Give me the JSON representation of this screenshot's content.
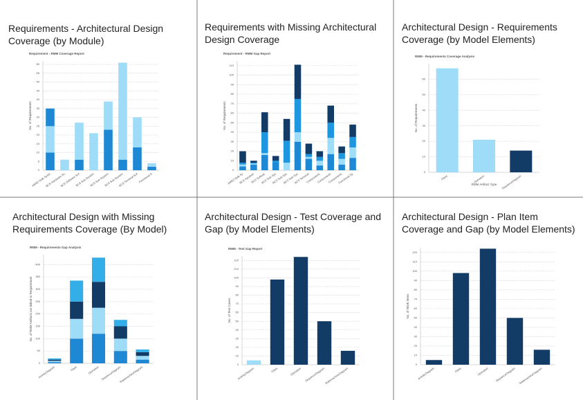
{
  "chart_data": [
    {
      "type": "bar",
      "title": "Requirements - Architectural Design Coverage (by Module)",
      "subtitle": "Requirement - RMM Coverage Report",
      "y_label": "No. of Requirements",
      "categories": [
        "AMSS Bulk Syste",
        "BCS Hardware So",
        "BCS Software Sof",
        "BCS Sub-System",
        "BCS Sub-System",
        "BCS Sub-System",
        "BCS Terminal Sof",
        "Functional S"
      ],
      "series": [
        {
          "color": "#1e88d4",
          "values": [
            10,
            0,
            6,
            0,
            23,
            6,
            13,
            2
          ]
        },
        {
          "color": "#9edcf7",
          "values": [
            15,
            6,
            21,
            21,
            16,
            55,
            17,
            2
          ]
        },
        {
          "color": "#1e88d4",
          "values": [
            10,
            0,
            0,
            0,
            0,
            0,
            0,
            0
          ]
        }
      ],
      "ylim": [
        0,
        62
      ],
      "yticks": [
        0,
        5,
        10,
        15,
        20,
        25,
        30,
        35,
        40,
        45,
        50,
        55,
        60
      ],
      "grid": true
    },
    {
      "type": "bar",
      "title": "Requirements with Missing Architectural Design Coverage",
      "subtitle": "Requirement - RMM Gap Report",
      "y_label": "No. of Requirements",
      "categories": [
        "AMSS Bulk Sy",
        "BCS Hardwar",
        "BCS Softwar",
        "BCS Sub-Sys",
        "BCS Sub-Sys",
        "BCS Sub-Sys",
        "BCS Terminal",
        "Components",
        "Components",
        "Components",
        "Functional Sp"
      ],
      "series": [
        {
          "color": "#1e88d4",
          "values": [
            4,
            6,
            16,
            8,
            0,
            30,
            12,
            5,
            17,
            6,
            13
          ]
        },
        {
          "color": "#9edcf7",
          "values": [
            2,
            1,
            2,
            0,
            8,
            10,
            2,
            5,
            17,
            6,
            11
          ]
        },
        {
          "color": "#1e96e0",
          "values": [
            2,
            1,
            22,
            2,
            23,
            35,
            3,
            4,
            16,
            6,
            11
          ]
        },
        {
          "color": "#123c66",
          "values": [
            12,
            2,
            21,
            5,
            23,
            36,
            11,
            6,
            18,
            7,
            13
          ]
        }
      ],
      "ylim": [
        0,
        115
      ],
      "yticks": [
        0,
        10,
        20,
        30,
        40,
        50,
        60,
        70,
        80,
        90,
        100,
        110
      ],
      "grid": true
    },
    {
      "type": "bar",
      "title": "Architectural Design - Requirements Coverage (by Model Elements)",
      "subtitle": "RMM - Requirements Coverage Analysis",
      "y_label": "No. of Requirements",
      "x_label": "RMM Artifact Type",
      "categories": [
        "Class",
        "Operation",
        "SequenceDiagram"
      ],
      "series": [
        {
          "colors": [
            "#9edcf7",
            "#9edcf7",
            "#123c66"
          ],
          "values": [
            67,
            21,
            14
          ]
        }
      ],
      "ylim": [
        0,
        70
      ],
      "yticks": [
        0,
        10,
        20,
        30,
        40,
        50,
        60
      ],
      "grid": true
    },
    {
      "type": "bar",
      "title": "Architectural Design with Missing Requirements Coverage (By Model)",
      "subtitle": "RMM - Requirements Gap Analysis",
      "y_label": "No. of RMM Artifacts not linked to Requirement",
      "categories": [
        "ActivityDiagram",
        "Class",
        "Operation",
        "SequenceDiagram",
        "StatemachineDiagram"
      ],
      "series": [
        {
          "color": "#1e88d4",
          "values": [
            5,
            100,
            120,
            50,
            15
          ]
        },
        {
          "color": "#9edcf7",
          "values": [
            5,
            80,
            105,
            50,
            15
          ]
        },
        {
          "color": "#123c66",
          "values": [
            5,
            70,
            105,
            50,
            15
          ]
        },
        {
          "color": "#33aee8",
          "values": [
            5,
            85,
            98,
            26,
            11
          ]
        }
      ],
      "ylim": [
        0,
        440
      ],
      "yticks": [
        0,
        50,
        100,
        150,
        200,
        250,
        300,
        350,
        400
      ],
      "grid": true
    },
    {
      "type": "bar",
      "title": "Architectural Design - Test Coverage and Gap (by Model Elements)",
      "subtitle": "RMM - Test Gap Report",
      "y_label": "No. of Test Cases",
      "categories": [
        "ActivityDiagram",
        "Class",
        "Operation",
        "SequenceDiagram",
        "StatemachineDiagram"
      ],
      "series": [
        {
          "colors": [
            "#9edcf7",
            "#123c66",
            "#123c66",
            "#123c66",
            "#123c66"
          ],
          "values": [
            5,
            98,
            124,
            50,
            16
          ]
        }
      ],
      "ylim": [
        0,
        125
      ],
      "yticks": [
        0,
        10,
        20,
        30,
        40,
        50,
        60,
        70,
        80,
        90,
        100,
        110,
        120
      ],
      "grid": true
    },
    {
      "type": "bar",
      "title": "Architectural Design - Plan Item Coverage and Gap (by Model Elements)",
      "y_label": "No. of Work Items",
      "categories": [
        "ActivityDiagram",
        "Class",
        "Operation",
        "SequenceDiagram",
        "StatemachineDiagram"
      ],
      "series": [
        {
          "color": "#123c66",
          "values": [
            5,
            98,
            124,
            50,
            16
          ]
        }
      ],
      "ylim": [
        0,
        125
      ],
      "yticks": [
        0,
        10,
        20,
        30,
        40,
        50,
        60,
        70,
        80,
        90,
        100,
        110,
        120
      ],
      "grid": true
    }
  ]
}
